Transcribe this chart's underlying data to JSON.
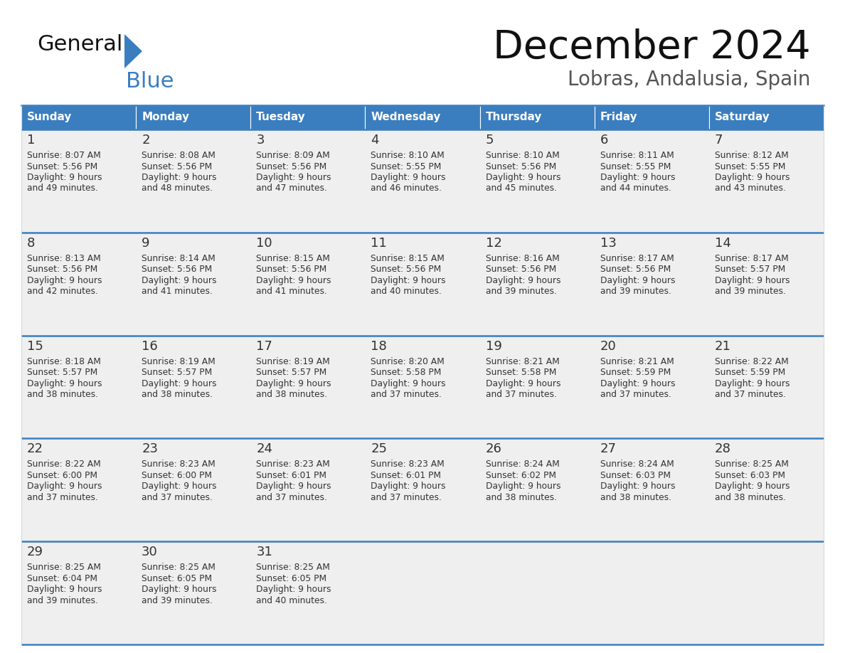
{
  "title": "December 2024",
  "subtitle": "Lobras, Andalusia, Spain",
  "header_color": "#3a7ebf",
  "header_text_color": "#ffffff",
  "background_color": "#ffffff",
  "cell_bg_color": "#efefef",
  "divider_color": "#3a7ebf",
  "text_color": "#333333",
  "days_of_week": [
    "Sunday",
    "Monday",
    "Tuesday",
    "Wednesday",
    "Thursday",
    "Friday",
    "Saturday"
  ],
  "weeks": [
    [
      {
        "day": "1",
        "sunrise": "8:07 AM",
        "sunset": "5:56 PM",
        "daylight_line1": "9 hours",
        "daylight_line2": "and 49 minutes."
      },
      {
        "day": "2",
        "sunrise": "8:08 AM",
        "sunset": "5:56 PM",
        "daylight_line1": "9 hours",
        "daylight_line2": "and 48 minutes."
      },
      {
        "day": "3",
        "sunrise": "8:09 AM",
        "sunset": "5:56 PM",
        "daylight_line1": "9 hours",
        "daylight_line2": "and 47 minutes."
      },
      {
        "day": "4",
        "sunrise": "8:10 AM",
        "sunset": "5:55 PM",
        "daylight_line1": "9 hours",
        "daylight_line2": "and 46 minutes."
      },
      {
        "day": "5",
        "sunrise": "8:10 AM",
        "sunset": "5:56 PM",
        "daylight_line1": "9 hours",
        "daylight_line2": "and 45 minutes."
      },
      {
        "day": "6",
        "sunrise": "8:11 AM",
        "sunset": "5:55 PM",
        "daylight_line1": "9 hours",
        "daylight_line2": "and 44 minutes."
      },
      {
        "day": "7",
        "sunrise": "8:12 AM",
        "sunset": "5:55 PM",
        "daylight_line1": "9 hours",
        "daylight_line2": "and 43 minutes."
      }
    ],
    [
      {
        "day": "8",
        "sunrise": "8:13 AM",
        "sunset": "5:56 PM",
        "daylight_line1": "9 hours",
        "daylight_line2": "and 42 minutes."
      },
      {
        "day": "9",
        "sunrise": "8:14 AM",
        "sunset": "5:56 PM",
        "daylight_line1": "9 hours",
        "daylight_line2": "and 41 minutes."
      },
      {
        "day": "10",
        "sunrise": "8:15 AM",
        "sunset": "5:56 PM",
        "daylight_line1": "9 hours",
        "daylight_line2": "and 41 minutes."
      },
      {
        "day": "11",
        "sunrise": "8:15 AM",
        "sunset": "5:56 PM",
        "daylight_line1": "9 hours",
        "daylight_line2": "and 40 minutes."
      },
      {
        "day": "12",
        "sunrise": "8:16 AM",
        "sunset": "5:56 PM",
        "daylight_line1": "9 hours",
        "daylight_line2": "and 39 minutes."
      },
      {
        "day": "13",
        "sunrise": "8:17 AM",
        "sunset": "5:56 PM",
        "daylight_line1": "9 hours",
        "daylight_line2": "and 39 minutes."
      },
      {
        "day": "14",
        "sunrise": "8:17 AM",
        "sunset": "5:57 PM",
        "daylight_line1": "9 hours",
        "daylight_line2": "and 39 minutes."
      }
    ],
    [
      {
        "day": "15",
        "sunrise": "8:18 AM",
        "sunset": "5:57 PM",
        "daylight_line1": "9 hours",
        "daylight_line2": "and 38 minutes."
      },
      {
        "day": "16",
        "sunrise": "8:19 AM",
        "sunset": "5:57 PM",
        "daylight_line1": "9 hours",
        "daylight_line2": "and 38 minutes."
      },
      {
        "day": "17",
        "sunrise": "8:19 AM",
        "sunset": "5:57 PM",
        "daylight_line1": "9 hours",
        "daylight_line2": "and 38 minutes."
      },
      {
        "day": "18",
        "sunrise": "8:20 AM",
        "sunset": "5:58 PM",
        "daylight_line1": "9 hours",
        "daylight_line2": "and 37 minutes."
      },
      {
        "day": "19",
        "sunrise": "8:21 AM",
        "sunset": "5:58 PM",
        "daylight_line1": "9 hours",
        "daylight_line2": "and 37 minutes."
      },
      {
        "day": "20",
        "sunrise": "8:21 AM",
        "sunset": "5:59 PM",
        "daylight_line1": "9 hours",
        "daylight_line2": "and 37 minutes."
      },
      {
        "day": "21",
        "sunrise": "8:22 AM",
        "sunset": "5:59 PM",
        "daylight_line1": "9 hours",
        "daylight_line2": "and 37 minutes."
      }
    ],
    [
      {
        "day": "22",
        "sunrise": "8:22 AM",
        "sunset": "6:00 PM",
        "daylight_line1": "9 hours",
        "daylight_line2": "and 37 minutes."
      },
      {
        "day": "23",
        "sunrise": "8:23 AM",
        "sunset": "6:00 PM",
        "daylight_line1": "9 hours",
        "daylight_line2": "and 37 minutes."
      },
      {
        "day": "24",
        "sunrise": "8:23 AM",
        "sunset": "6:01 PM",
        "daylight_line1": "9 hours",
        "daylight_line2": "and 37 minutes."
      },
      {
        "day": "25",
        "sunrise": "8:23 AM",
        "sunset": "6:01 PM",
        "daylight_line1": "9 hours",
        "daylight_line2": "and 37 minutes."
      },
      {
        "day": "26",
        "sunrise": "8:24 AM",
        "sunset": "6:02 PM",
        "daylight_line1": "9 hours",
        "daylight_line2": "and 38 minutes."
      },
      {
        "day": "27",
        "sunrise": "8:24 AM",
        "sunset": "6:03 PM",
        "daylight_line1": "9 hours",
        "daylight_line2": "and 38 minutes."
      },
      {
        "day": "28",
        "sunrise": "8:25 AM",
        "sunset": "6:03 PM",
        "daylight_line1": "9 hours",
        "daylight_line2": "and 38 minutes."
      }
    ],
    [
      {
        "day": "29",
        "sunrise": "8:25 AM",
        "sunset": "6:04 PM",
        "daylight_line1": "9 hours",
        "daylight_line2": "and 39 minutes."
      },
      {
        "day": "30",
        "sunrise": "8:25 AM",
        "sunset": "6:05 PM",
        "daylight_line1": "9 hours",
        "daylight_line2": "and 39 minutes."
      },
      {
        "day": "31",
        "sunrise": "8:25 AM",
        "sunset": "6:05 PM",
        "daylight_line1": "9 hours",
        "daylight_line2": "and 40 minutes."
      },
      null,
      null,
      null,
      null
    ]
  ]
}
